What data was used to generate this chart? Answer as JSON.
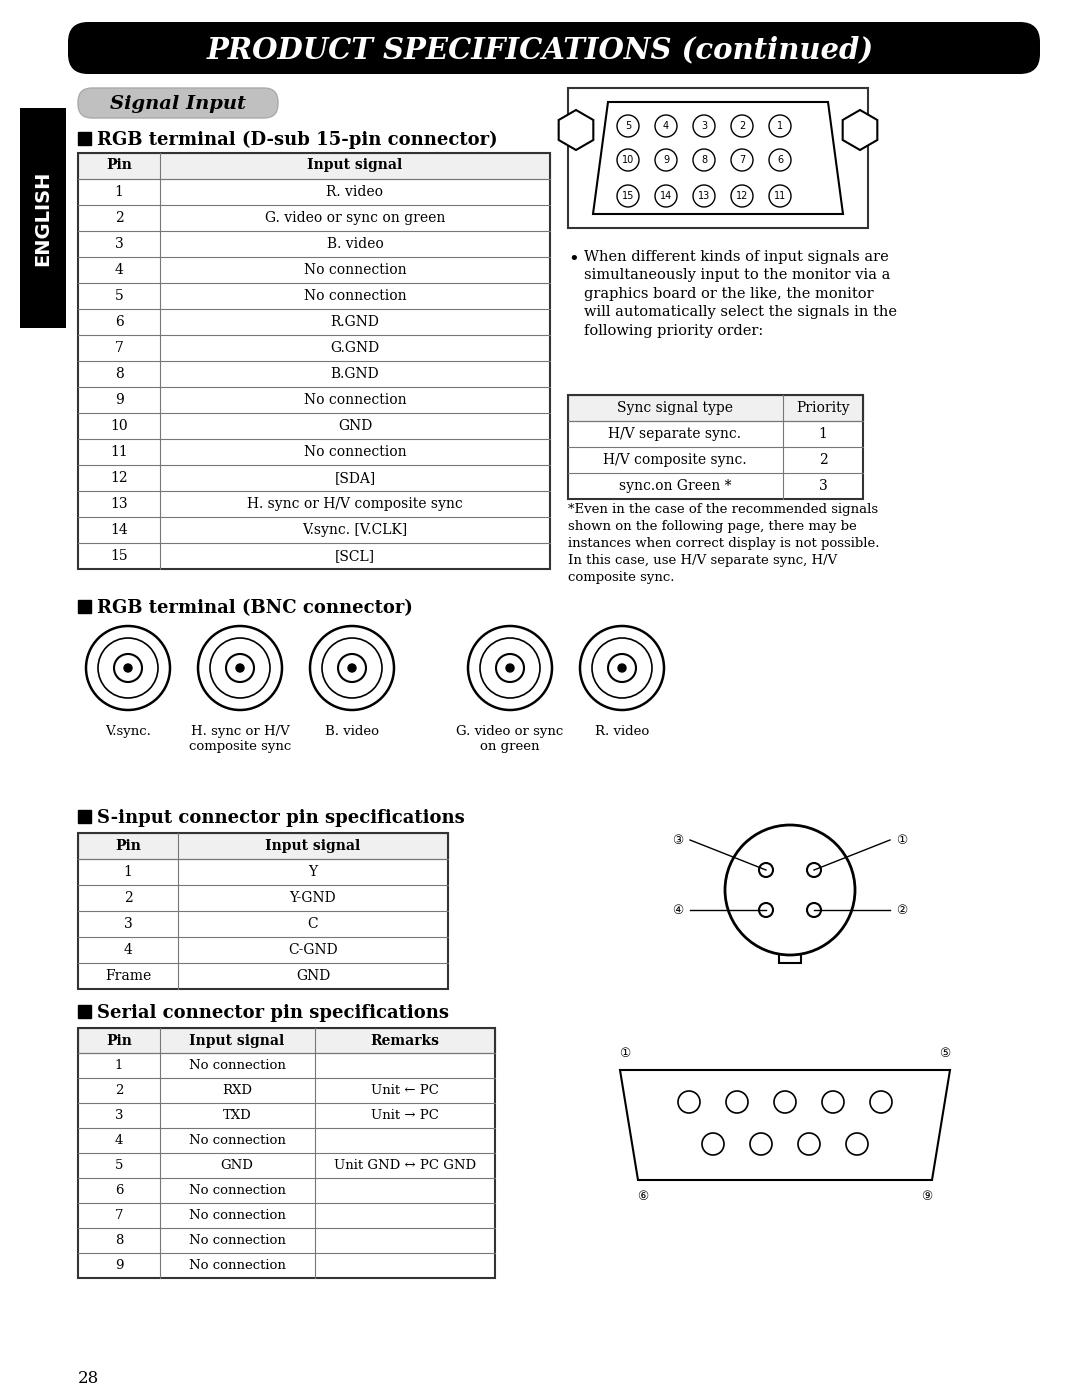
{
  "title": "PRODUCT SPECIFICATIONS (continued)",
  "signal_input_label": "Signal Input",
  "english_label": "ENGLISH",
  "rgb_dsub_title": "RGB terminal (D-sub 15-pin connector)",
  "rgb_bnc_title": "RGB terminal (BNC connector)",
  "s_input_title": "S-input connector pin specifications",
  "serial_title": "Serial connector pin specifications",
  "dsub_table_headers": [
    "Pin",
    "Input signal"
  ],
  "dsub_table_data": [
    [
      "1",
      "R. video"
    ],
    [
      "2",
      "G. video or sync on green"
    ],
    [
      "3",
      "B. video"
    ],
    [
      "4",
      "No connection"
    ],
    [
      "5",
      "No connection"
    ],
    [
      "6",
      "R.GND"
    ],
    [
      "7",
      "G.GND"
    ],
    [
      "8",
      "B.GND"
    ],
    [
      "9",
      "No connection"
    ],
    [
      "10",
      "GND"
    ],
    [
      "11",
      "No connection"
    ],
    [
      "12",
      "[SDA]"
    ],
    [
      "13",
      "H. sync or H/V composite sync"
    ],
    [
      "14",
      "V.sync. [V.CLK]"
    ],
    [
      "15",
      "[SCL]"
    ]
  ],
  "priority_table_headers": [
    "Sync signal type",
    "Priority"
  ],
  "priority_table_data": [
    [
      "H/V separate sync.",
      "1"
    ],
    [
      "H/V composite sync.",
      "2"
    ],
    [
      "sync.on Green *",
      "3"
    ]
  ],
  "bullet_text": "When different kinds of input signals are\nsimultaneously input to the monitor via a\ngraphics board or the like, the monitor\nwill automatically select the signals in the\nfollowing priority order:",
  "footnote_text": "*Even in the case of the recommended signals\nshown on the following page, there may be\ninstances when correct display is not possible.\nIn this case, use H/V separate sync, H/V\ncomposite sync.",
  "bnc_labels": [
    "V.sync.",
    "H. sync or H/V\ncomposite sync",
    "B. video",
    "G. video or sync\non green",
    "R. video"
  ],
  "s_input_headers": [
    "Pin",
    "Input signal"
  ],
  "s_input_data": [
    [
      "1",
      "Y"
    ],
    [
      "2",
      "Y-GND"
    ],
    [
      "3",
      "C"
    ],
    [
      "4",
      "C-GND"
    ],
    [
      "Frame",
      "GND"
    ]
  ],
  "serial_headers": [
    "Pin",
    "Input signal",
    "Remarks"
  ],
  "serial_data": [
    [
      "1",
      "No connection",
      ""
    ],
    [
      "2",
      "RXD",
      "Unit ← PC"
    ],
    [
      "3",
      "TXD",
      "Unit → PC"
    ],
    [
      "4",
      "No connection",
      ""
    ],
    [
      "5",
      "GND",
      "Unit GND ↔ PC GND"
    ],
    [
      "6",
      "No connection",
      ""
    ],
    [
      "7",
      "No connection",
      ""
    ],
    [
      "8",
      "No connection",
      ""
    ],
    [
      "9",
      "No connection",
      ""
    ]
  ],
  "page_number": "28",
  "bg_color": "#ffffff",
  "table_line_color": "#777777"
}
